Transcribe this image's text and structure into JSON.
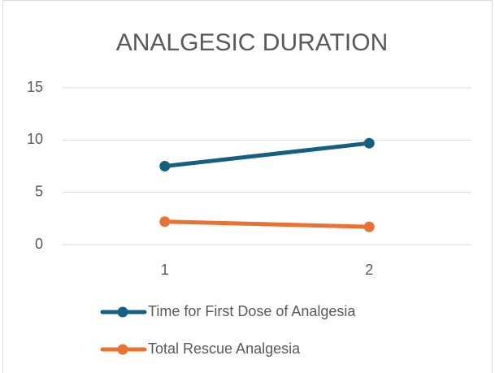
{
  "chart_data": {
    "type": "line",
    "title": "ANALGESIC DURATION",
    "categories": [
      "1",
      "2"
    ],
    "series": [
      {
        "name": "Time for First Dose of Analgesia",
        "color": "#156082",
        "values": [
          7.5,
          9.7
        ]
      },
      {
        "name": "Total Rescue Analgesia",
        "color": "#E97132",
        "values": [
          2.2,
          1.7
        ]
      }
    ],
    "ylim": [
      0,
      15
    ],
    "yticks": [
      0,
      5,
      10,
      15
    ],
    "grid": true,
    "legend": "bottom"
  }
}
